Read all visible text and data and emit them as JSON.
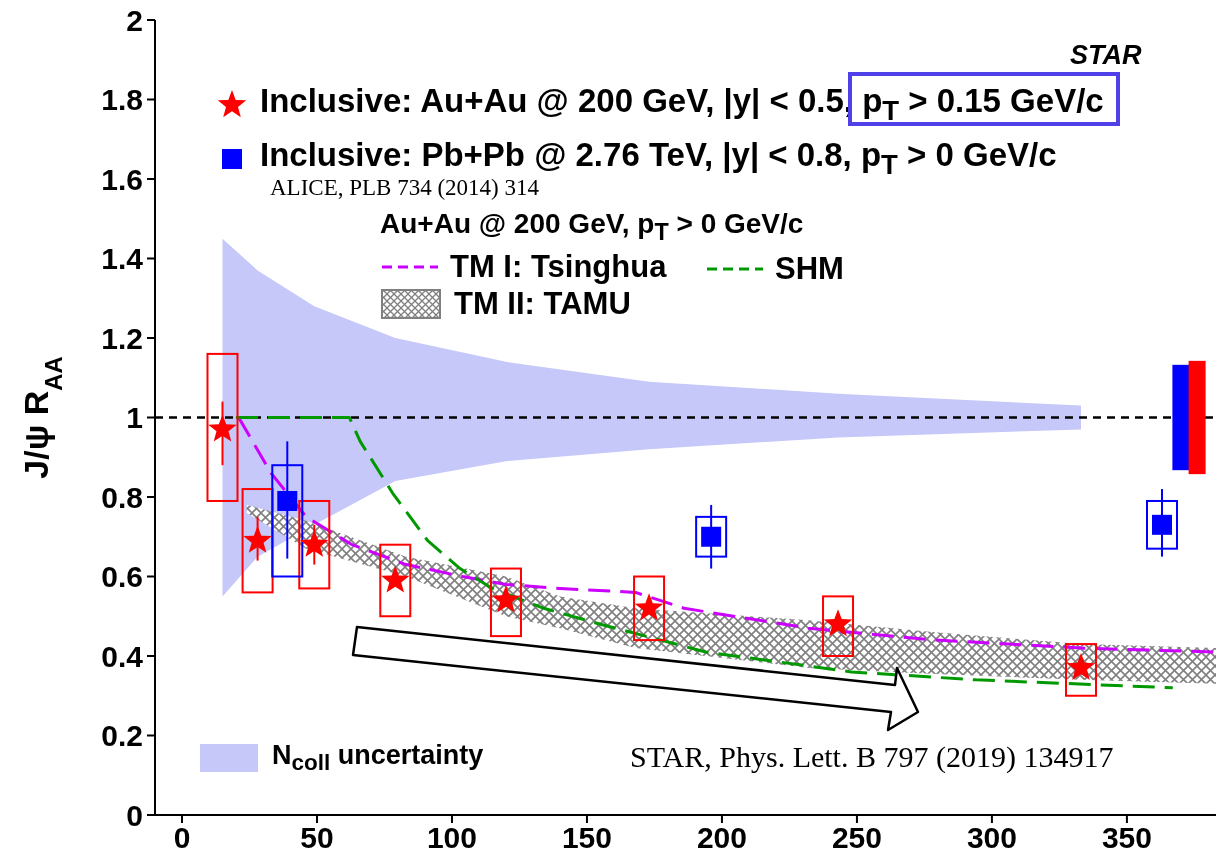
{
  "chart_data": {
    "type": "scatter",
    "ylabel": "J/ψ R$_{AA}$",
    "legend_title": "Au+Au @ 200 GeV, p$_{T}$ > 0 GeV/c",
    "xlim": [
      -10,
      383
    ],
    "xticks": [
      0,
      50,
      100,
      150,
      200,
      250,
      300,
      350
    ],
    "ylim": [
      0,
      2
    ],
    "yticks": [
      0,
      0.2,
      0.4,
      0.6,
      0.8,
      1,
      1.2,
      1.4,
      1.6,
      1.8,
      2
    ],
    "grid": false,
    "legend": "bottom left",
    "annotations": [
      "STAR",
      "ALICE, PLB 734 (2014) 314",
      "STAR, Phys. Lett. B 797 (2019) 134917"
    ],
    "ref_lines": [
      {
        "axis": "y",
        "value": 1,
        "color": "#000000",
        "line_style": "dashed"
      }
    ],
    "series": [
      {
        "type": "area",
        "name": "N$_{coll}$ uncertainty",
        "color": "#c5c8f8",
        "x": [
          15,
          28,
          49,
          79,
          120,
          173,
          243,
          333
        ],
        "values": [
          null,
          null,
          null,
          null,
          null,
          null,
          null,
          null
        ],
        "lower": [
          0.55,
          0.65,
          0.73,
          0.84,
          0.89,
          0.92,
          0.95,
          0.97
        ],
        "upper": [
          1.45,
          1.37,
          1.28,
          1.2,
          1.14,
          1.09,
          1.06,
          1.03
        ]
      },
      {
        "type": "area",
        "name": "TM II: TAMU",
        "color": "#808080",
        "x": [
          24,
          46,
          83,
          120,
          140,
          168,
          232,
          279,
          333,
          383
        ],
        "values": [
          null,
          null,
          null,
          null,
          null,
          null,
          null,
          null,
          null,
          null
        ],
        "lower": [
          0.76,
          0.67,
          0.6,
          0.5,
          0.47,
          0.42,
          0.37,
          0.355,
          0.34,
          0.33
        ],
        "upper": [
          0.78,
          0.74,
          0.65,
          0.6,
          0.55,
          0.52,
          0.49,
          0.46,
          0.43,
          0.42
        ]
      },
      {
        "type": "line",
        "name": "TM I: Tsinghua",
        "color": "#cc00ff",
        "line_style": "dashed",
        "x": [
          21,
          33,
          46,
          63,
          83,
          104,
          120,
          140,
          168,
          186,
          232,
          279,
          333,
          382
        ],
        "values": [
          1,
          0.86,
          0.75,
          0.68,
          0.63,
          0.6,
          0.58,
          0.57,
          0.56,
          0.52,
          0.47,
          0.44,
          0.42,
          0.41
        ]
      },
      {
        "type": "line",
        "name": "SHM",
        "color": "#009900",
        "line_style": "dashed",
        "x": [
          20,
          62,
          66,
          78,
          91,
          103,
          115,
          134,
          155,
          194,
          248,
          294,
          367
        ],
        "values": [
          1,
          1,
          0.94,
          0.81,
          0.69,
          0.62,
          0.57,
          0.52,
          0.48,
          0.41,
          0.36,
          0.34,
          0.32
        ]
      },
      {
        "type": "bar",
        "color": "#ff0000",
        "x": [
          15,
          28,
          49,
          79,
          120,
          173,
          243,
          333
        ],
        "base": [
          0.79,
          0.56,
          0.57,
          0.5,
          0.45,
          0.44,
          0.4,
          0.3
        ],
        "values": [
          0.37,
          0.26,
          0.22,
          0.18,
          0.17,
          0.16,
          0.15,
          0.13
        ]
      },
      {
        "type": "bar",
        "color": "#0000ff",
        "x": [
          39,
          196,
          363
        ],
        "base": [
          0.6,
          0.65,
          0.67
        ],
        "values": [
          0.28,
          0.1,
          0.12
        ]
      },
      {
        "type": "bar",
        "color": "#0000ff",
        "x": [
          370
        ],
        "base": [
          0.87
        ],
        "values": [
          0.26
        ]
      },
      {
        "type": "bar",
        "color": "#ff0000",
        "x": [
          376
        ],
        "base": [
          0.86
        ],
        "values": [
          0.28
        ]
      },
      {
        "name": "Inclusive: Au+Au @ 200 GeV, |y| < 0.5, p$_{T}$ > 0.15 GeV/c",
        "color": "#ff0000",
        "marker": "star",
        "x": [
          15,
          28,
          49,
          79,
          120,
          173,
          243,
          333
        ],
        "values": [
          0.97,
          0.69,
          0.68,
          0.59,
          0.54,
          0.52,
          0.48,
          0.37
        ],
        "errors": [
          [
            0.88,
            1.04
          ],
          [
            0.64,
            0.75
          ],
          [
            0.63,
            0.73
          ],
          null,
          null,
          null,
          null,
          null
        ]
      },
      {
        "name": "Inclusive: Pb+Pb @ 2.76 TeV, |y| < 0.8, p$_{T}$ > 0 GeV/c",
        "color": "#0000ff",
        "marker": "square",
        "x": [
          39,
          196,
          363
        ],
        "values": [
          0.79,
          0.7,
          0.73
        ],
        "errors": [
          [
            0.645,
            0.94
          ],
          [
            0.62,
            0.78
          ],
          [
            0.65,
            0.82
          ]
        ]
      }
    ]
  }
}
